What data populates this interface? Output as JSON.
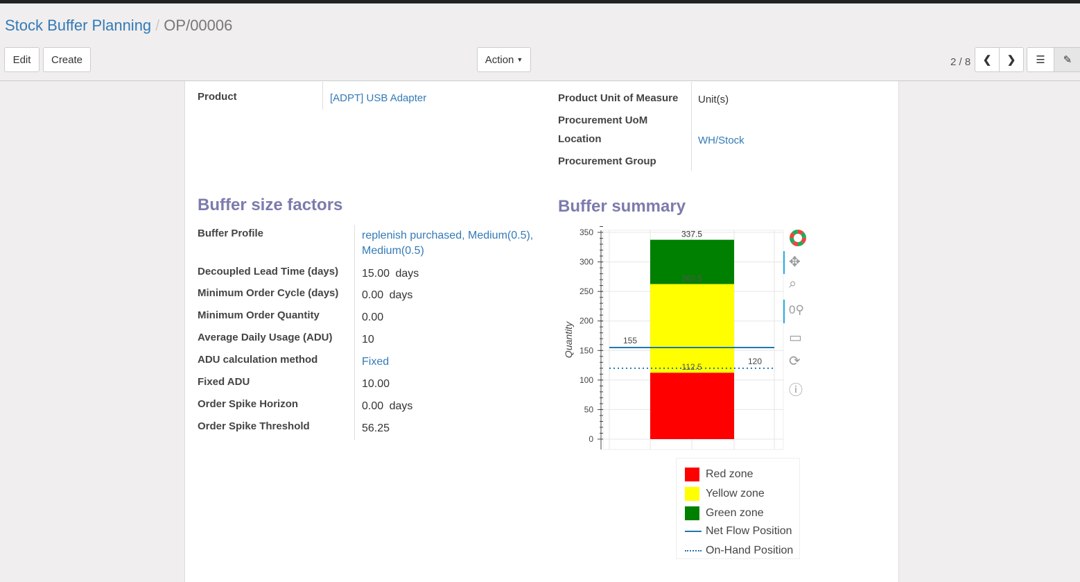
{
  "breadcrumb": {
    "parent": "Stock Buffer Planning",
    "current": "OP/00006"
  },
  "toolbar": {
    "edit": "Edit",
    "create": "Create",
    "action": "Action",
    "pager": "2 / 8"
  },
  "product": {
    "label": "Product",
    "value": "[ADPT] USB Adapter"
  },
  "right_fields": [
    {
      "label": "Product Unit of Measure",
      "value": "Unit(s)"
    },
    {
      "label": "Procurement UoM",
      "value": ""
    },
    {
      "label": "Location",
      "value": "WH/Stock"
    },
    {
      "label": "Procurement Group",
      "value": ""
    }
  ],
  "factors": {
    "title": "Buffer size factors",
    "rows": [
      {
        "label": "Buffer Profile",
        "value": "replenish purchased, Medium(0.5),",
        "value2": "Medium(0.5)",
        "unit": ""
      },
      {
        "label": "Decoupled Lead Time (days)",
        "value": "15.00",
        "unit": "days"
      },
      {
        "label": "Minimum Order Cycle (days)",
        "value": "0.00",
        "unit": "days"
      },
      {
        "label": "Minimum Order Quantity",
        "value": "0.00",
        "unit": ""
      },
      {
        "label": "Average Daily Usage (ADU)",
        "value": "10",
        "unit": ""
      },
      {
        "label": "ADU calculation method",
        "value": "Fixed",
        "unit": ""
      },
      {
        "label": "Fixed ADU",
        "value": "10.00",
        "unit": ""
      },
      {
        "label": "Order Spike Horizon",
        "value": "0.00",
        "unit": "days"
      },
      {
        "label": "Order Spike Threshold",
        "value": "56.25",
        "unit": ""
      }
    ]
  },
  "summary": {
    "title": "Buffer summary"
  },
  "chart_data": {
    "type": "bar",
    "ylabel": "Quantity",
    "ylim": [
      0,
      350
    ],
    "yticks": [
      "0",
      "50",
      "100",
      "150",
      "200",
      "250",
      "300",
      "350"
    ],
    "grid": true,
    "stacked_zones": [
      {
        "name": "Red zone",
        "from": 0,
        "to": 112.5,
        "label": "112.5",
        "color": "#ff0000"
      },
      {
        "name": "Yellow zone",
        "from": 112.5,
        "to": 262.5,
        "label": "262.5",
        "color": "#ffff00"
      },
      {
        "name": "Green zone",
        "from": 262.5,
        "to": 337.5,
        "label": "337.5",
        "color": "#008000"
      }
    ],
    "lines": [
      {
        "name": "Net Flow Position",
        "value": 155,
        "label": "155",
        "style": "solid",
        "color": "#1f77b4"
      },
      {
        "name": "On-Hand Position",
        "value": 120,
        "label": "120",
        "style": "dotted",
        "color": "#1f77b4"
      }
    ],
    "legend": "bottom-right"
  }
}
